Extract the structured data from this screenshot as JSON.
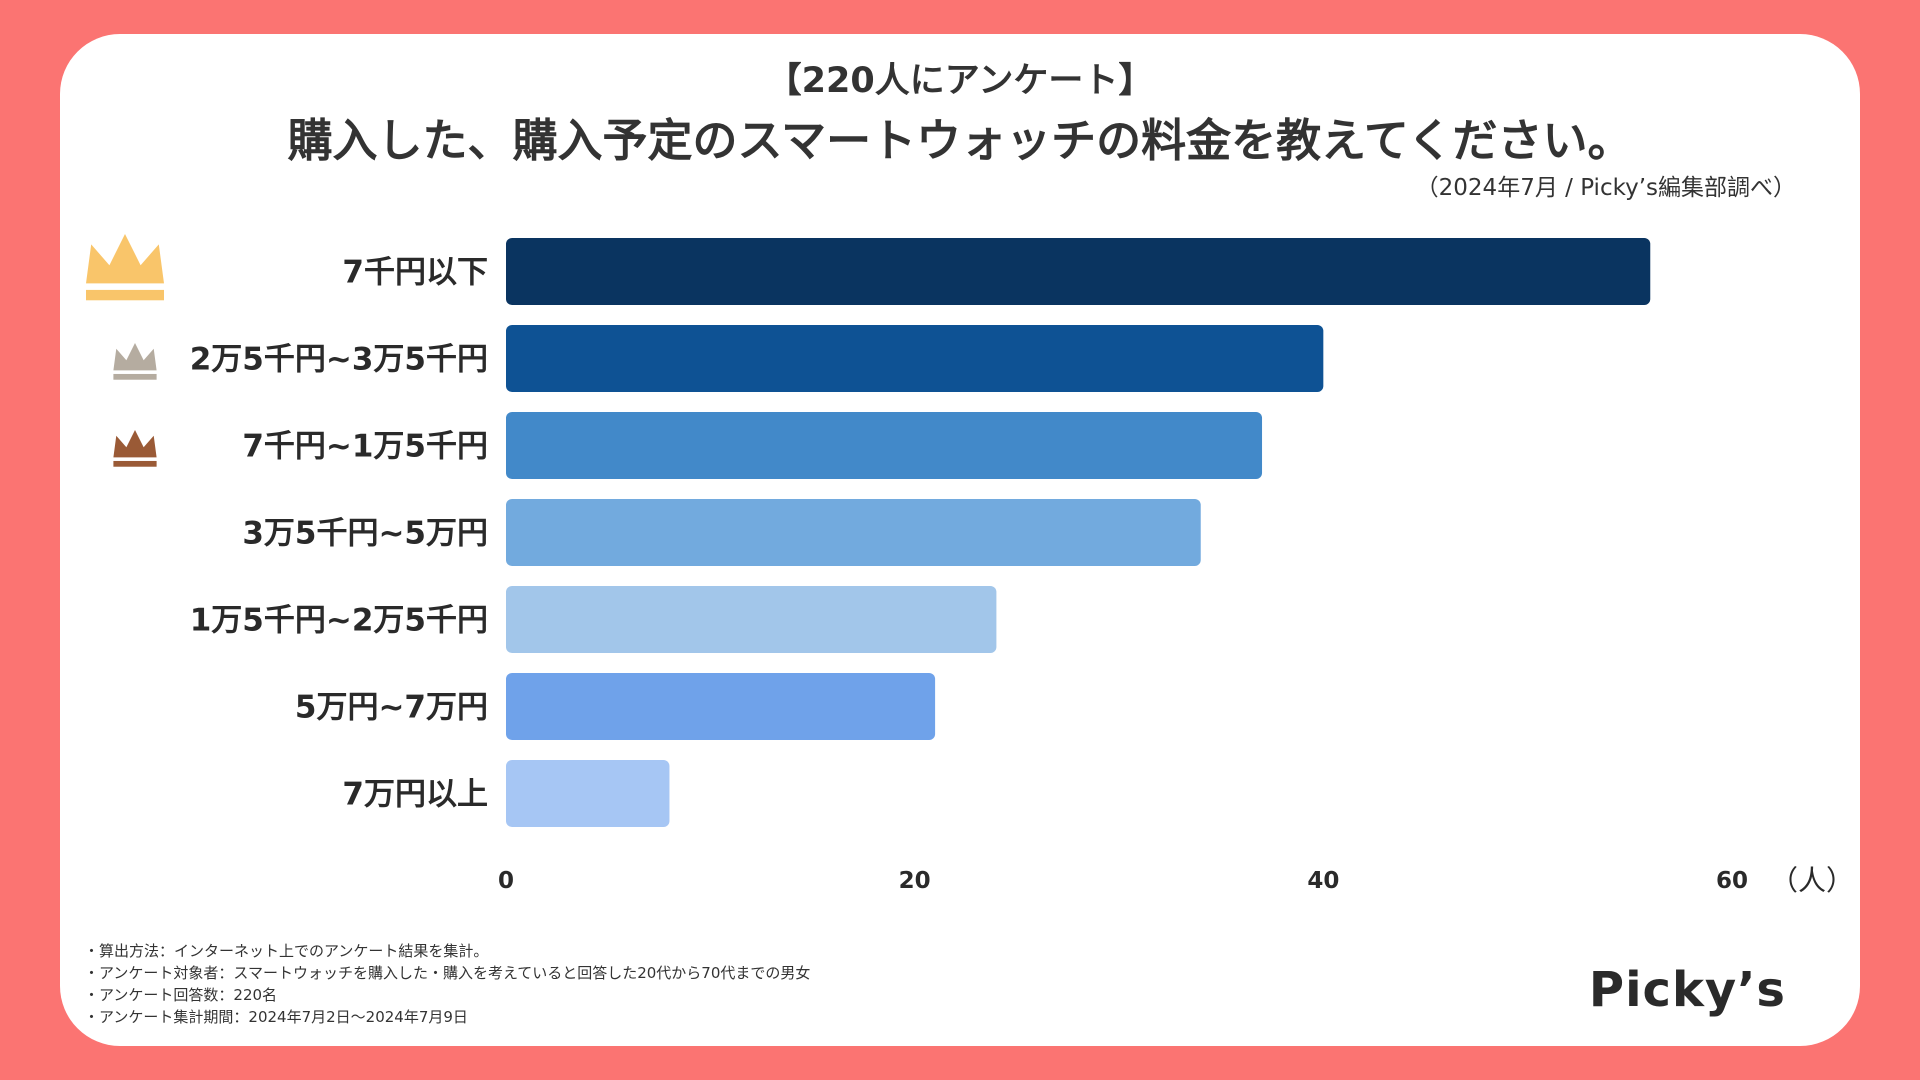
{
  "header": {
    "subtitle": "【220人にアンケート】",
    "title": "購入した、購入予定のスマートウォッチの料金を教えてください。",
    "source": "（2024年7月 / Picky’s編集部調べ）"
  },
  "chart_data": {
    "type": "bar",
    "orientation": "horizontal",
    "categories": [
      "7千円以下",
      "2万5千円~3万5千円",
      "7千円~1万5千円",
      "3万5千円~5万円",
      "1万5千円~2万5千円",
      "5万円~7万円",
      "7万円以上"
    ],
    "values": [
      56,
      40,
      37,
      34,
      24,
      21,
      8
    ],
    "colors": [
      "#0a3460",
      "#0e5294",
      "#4289c9",
      "#72aade",
      "#a2c6ea",
      "#6fa2ea",
      "#a6c6f4"
    ],
    "xticks": [
      0,
      20,
      40,
      60
    ],
    "xlim": [
      0,
      60
    ],
    "xunit": "（人）",
    "title": "購入した、購入予定のスマートウォッチの料金を教えてください。",
    "rank_icons": [
      {
        "rank": 1,
        "icon": "crown-gold-icon",
        "color": "#f9c56a"
      },
      {
        "rank": 2,
        "icon": "crown-silver-icon",
        "color": "#b5aca0"
      },
      {
        "rank": 3,
        "icon": "crown-bronze-icon",
        "color": "#9a5a36"
      }
    ]
  },
  "notes": [
    "・算出方法：インターネット上でのアンケート結果を集計。",
    "・アンケート対象者：スマートウォッチを購入した・購入を考えていると回答した20代から70代までの男女",
    "・アンケート回答数：220名",
    "・アンケート集計期間：2024年7月2日〜2024年7月9日"
  ],
  "logo": "Picky’s"
}
